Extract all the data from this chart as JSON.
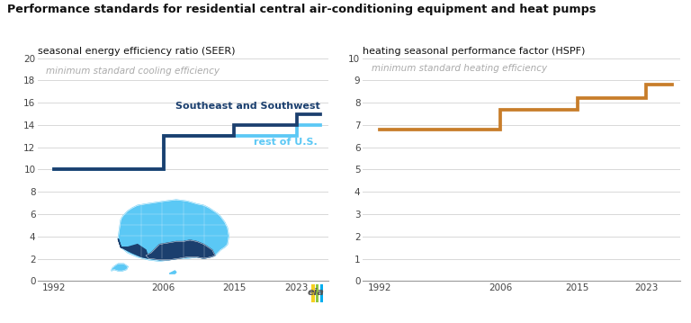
{
  "title_line1": "Performance standards for residential central air-conditioning equipment and heat pumps",
  "left_subtitle": "seasonal energy efficiency ratio (SEER)",
  "right_subtitle": "heating seasonal performance factor (HSPF)",
  "left_legend": "minimum standard cooling efficiency",
  "right_legend": "minimum standard heating efficiency",
  "seer_rest_label": "rest of U.S.",
  "seer_se_label": "Southeast and Southwest",
  "seer_rest_color": "#5bc8f5",
  "seer_se_color": "#1b3f6e",
  "hspf_color": "#c87d2a",
  "legend_color": "#aaaaaa",
  "bg_color": "#ffffff",
  "grid_color": "#d8d8d8",
  "title_color": "#111111",
  "subtitle_color": "#111111",
  "tick_color": "#444444",
  "left_ylim": [
    0,
    20
  ],
  "left_yticks": [
    0,
    2,
    4,
    6,
    8,
    10,
    12,
    14,
    16,
    18,
    20
  ],
  "right_ylim": [
    0,
    10
  ],
  "right_yticks": [
    0,
    1,
    2,
    3,
    4,
    5,
    6,
    7,
    8,
    9,
    10
  ],
  "xticks": [
    1992,
    2006,
    2015,
    2023
  ],
  "seer_rest_x": [
    1992,
    2006,
    2006,
    2023,
    2023,
    2026
  ],
  "seer_rest_y": [
    10,
    10,
    13,
    13,
    14,
    14
  ],
  "seer_se_x": [
    1992,
    2006,
    2006,
    2015,
    2015,
    2023,
    2023,
    2026
  ],
  "seer_se_y": [
    10,
    10,
    13,
    13,
    14,
    14,
    15,
    15
  ],
  "hspf_x": [
    1992,
    2006,
    2006,
    2015,
    2015,
    2023,
    2023,
    2026
  ],
  "hspf_y": [
    6.8,
    6.8,
    7.7,
    7.7,
    8.2,
    8.2,
    8.8,
    8.8
  ],
  "line_width": 2.2
}
